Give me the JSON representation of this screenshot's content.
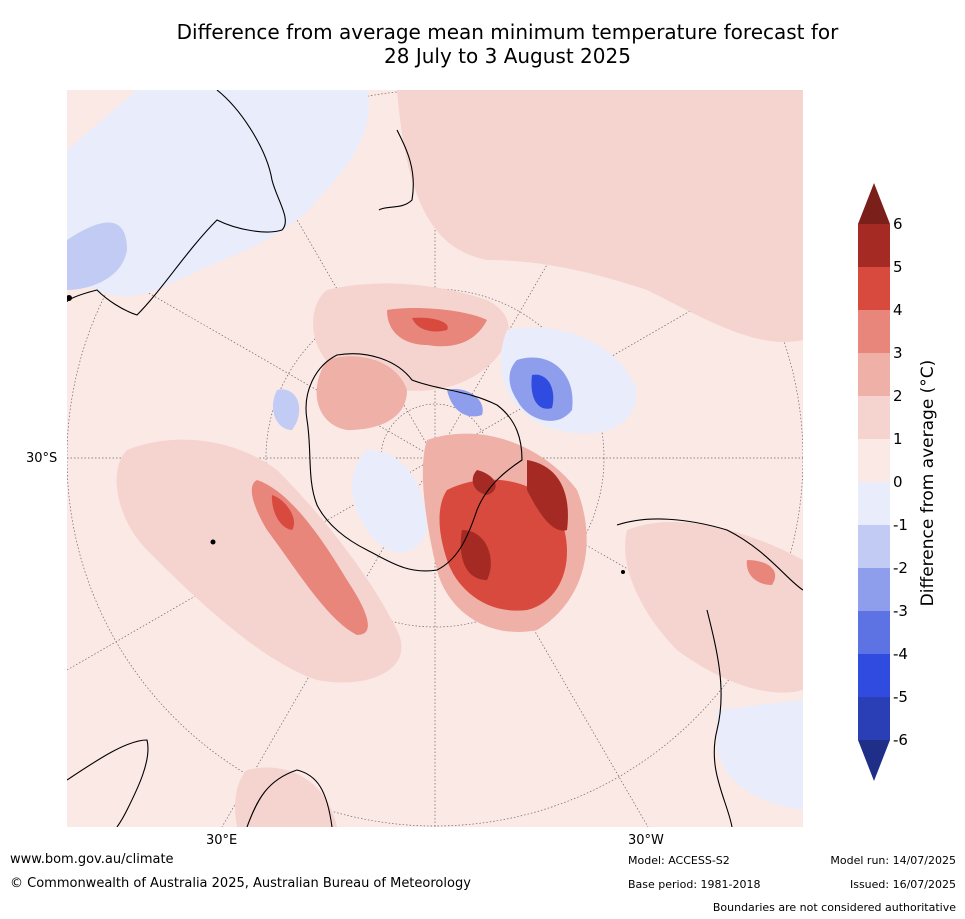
{
  "title_line1": "Difference from average mean minimum temperature forecast for",
  "title_line2": "28 July to 3 August 2025",
  "axis": {
    "lat_30s": "30°S",
    "lon_30e": "30°E",
    "lon_30w": "30°W"
  },
  "colorbar": {
    "label": "Difference from average (°C)",
    "ticks": [
      "6",
      "5",
      "4",
      "3",
      "2",
      "1",
      "0",
      "-1",
      "-2",
      "-3",
      "-4",
      "-5",
      "-6"
    ],
    "colors_top_to_bottom": [
      "#a52a23",
      "#d94a3e",
      "#e8867c",
      "#efb0a8",
      "#f5d4d0",
      "#fbe9e6",
      "#e8ecfb",
      "#c2cbf3",
      "#8e9eec",
      "#5e73e3",
      "#2f4be0",
      "#2a3fb5"
    ],
    "over_color": "#7a1f1a",
    "under_color": "#1f2e86"
  },
  "footer": {
    "website": "www.bom.gov.au/climate",
    "copyright": "© Commonwealth of Australia 2025, Australian Bureau of Meteorology",
    "model": "Model: ACCESS-S2",
    "base_period": "Base period: 1981-2018",
    "model_run": "Model run: 14/07/2025",
    "issued": "Issued: 16/07/2025",
    "disclaimer": "Boundaries are not considered authoritative"
  }
}
